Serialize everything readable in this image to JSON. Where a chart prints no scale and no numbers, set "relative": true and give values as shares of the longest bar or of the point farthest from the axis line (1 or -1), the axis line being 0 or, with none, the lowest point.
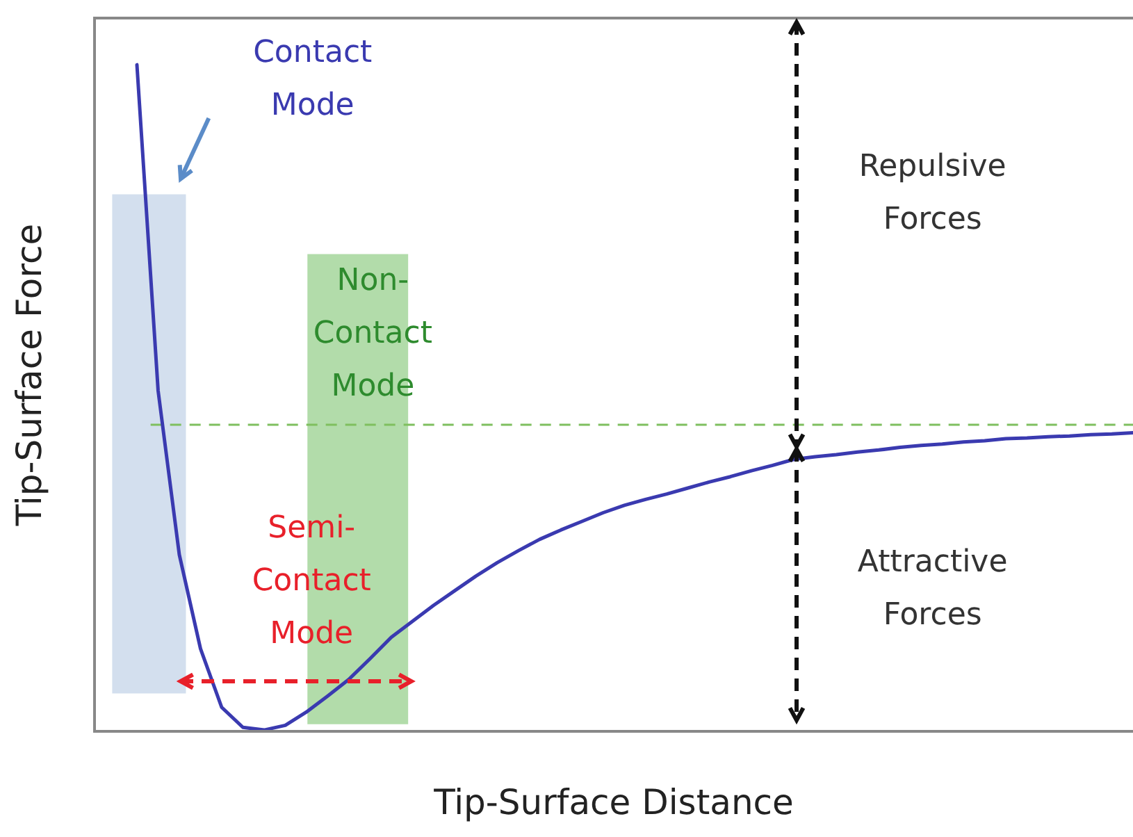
{
  "chart_data": {
    "type": "line",
    "relative": true,
    "xlabel": "Tip-Surface Distance",
    "ylabel": "Tip-Surface Force",
    "categories": [
      null,
      null,
      null,
      null,
      null,
      null,
      null,
      null,
      null,
      null,
      null,
      null,
      null,
      null,
      null,
      null,
      null,
      null,
      null,
      null,
      null,
      null,
      null,
      null,
      null,
      null,
      null,
      null,
      null,
      null,
      null,
      null,
      null,
      null,
      null,
      null,
      null,
      null,
      null,
      null,
      null,
      null,
      null,
      null,
      null,
      null,
      null,
      null,
      null,
      null
    ],
    "series": [
      {
        "color": "#3a3ab0",
        "values": [
          null,
          null,
          1.0,
          0.511,
          0.265,
          0.124,
          0.036,
          0.006,
          0.002,
          0.009,
          0.029,
          0.053,
          0.078,
          0.109,
          0.141,
          0.165,
          0.189,
          0.211,
          0.233,
          0.253,
          0.271,
          0.288,
          0.302,
          0.315,
          0.328,
          0.339,
          0.348,
          0.356,
          0.365,
          0.374,
          0.382,
          0.391,
          0.399,
          0.408,
          0.412,
          0.415,
          0.419,
          0.422,
          0.426,
          0.429,
          0.431,
          0.434,
          0.436,
          0.439,
          0.44,
          0.442,
          0.443,
          0.445,
          0.446,
          0.448
        ]
      }
    ],
    "ref_lines": [
      {
        "axis": "y",
        "value": 0.46,
        "color": "#7fbf5f",
        "line_style": "dashed"
      }
    ],
    "tick_labels": false,
    "legend": false,
    "grid": false,
    "marker": "none",
    "line_style": "solid",
    "annotations": [
      "Contact\nMode",
      "Non-\nContact\nMode",
      "Semi-\nContact\nMode",
      "Repulsive\nForces",
      "Attractive\nForces"
    ]
  }
}
